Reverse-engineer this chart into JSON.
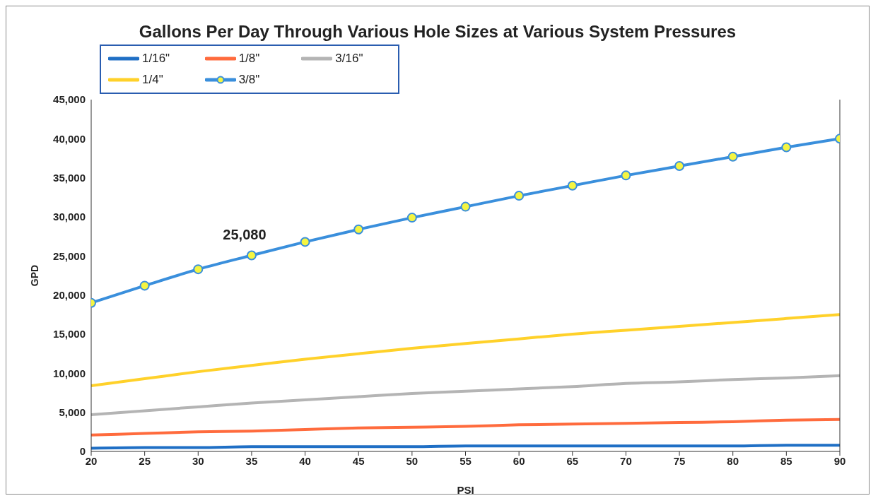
{
  "chart_data": {
    "type": "line",
    "title": "Gallons Per Day Through Various Hole Sizes at Various System Pressures",
    "xlabel": "PSI",
    "ylabel": "GPD",
    "x": [
      20,
      25,
      30,
      35,
      40,
      45,
      50,
      55,
      60,
      65,
      70,
      75,
      80,
      85,
      90
    ],
    "series": [
      {
        "name": "1/16\"",
        "color": "#1f6fc5",
        "marker": "none",
        "values": [
          400,
          500,
          500,
          600,
          600,
          600,
          600,
          700,
          700,
          700,
          700,
          700,
          700,
          800,
          800
        ]
      },
      {
        "name": "1/8\"",
        "color": "#ff6b3d",
        "marker": "none",
        "values": [
          2100,
          2300,
          2500,
          2600,
          2800,
          3000,
          3100,
          3200,
          3400,
          3500,
          3600,
          3700,
          3800,
          4000,
          4100
        ]
      },
      {
        "name": "3/16\"",
        "color": "#b4b4b4",
        "marker": "none",
        "values": [
          4700,
          5200,
          5700,
          6200,
          6600,
          7000,
          7400,
          7700,
          8000,
          8300,
          8700,
          8900,
          9200,
          9400,
          9700
        ]
      },
      {
        "name": "1/4\"",
        "color": "#ffd12a",
        "marker": "none",
        "values": [
          8400,
          9300,
          10200,
          11000,
          11800,
          12500,
          13200,
          13800,
          14400,
          15000,
          15500,
          16000,
          16500,
          17000,
          17500
        ]
      },
      {
        "name": "3/8\"",
        "color": "#3a8fdc",
        "marker": "circle",
        "values": [
          19000,
          21200,
          23300,
          25080,
          26800,
          28400,
          29900,
          31300,
          32700,
          34000,
          35300,
          36500,
          37700,
          38900,
          40000
        ]
      }
    ],
    "xlim": [
      20,
      90
    ],
    "xticks": [
      20,
      25,
      30,
      35,
      40,
      45,
      50,
      55,
      60,
      65,
      70,
      75,
      80,
      85,
      90
    ],
    "ylim": [
      0,
      45000
    ],
    "yticks": [
      {
        "value": 0,
        "label": "0"
      },
      {
        "value": 5000,
        "label": "5,000"
      },
      {
        "value": 10000,
        "label": "10,000"
      },
      {
        "value": 15000,
        "label": "15,000"
      },
      {
        "value": 20000,
        "label": "20,000"
      },
      {
        "value": 25000,
        "label": "25,000"
      },
      {
        "value": 30000,
        "label": "30,000"
      },
      {
        "value": 35000,
        "label": "35,000"
      },
      {
        "value": 40000,
        "label": "40,000"
      },
      {
        "value": 45000,
        "label": "45,000"
      }
    ],
    "annotations": [
      {
        "text": "25,080",
        "x": 35,
        "y": 25080
      }
    ],
    "grid": false,
    "legend": "top left",
    "line_style": "solid"
  }
}
